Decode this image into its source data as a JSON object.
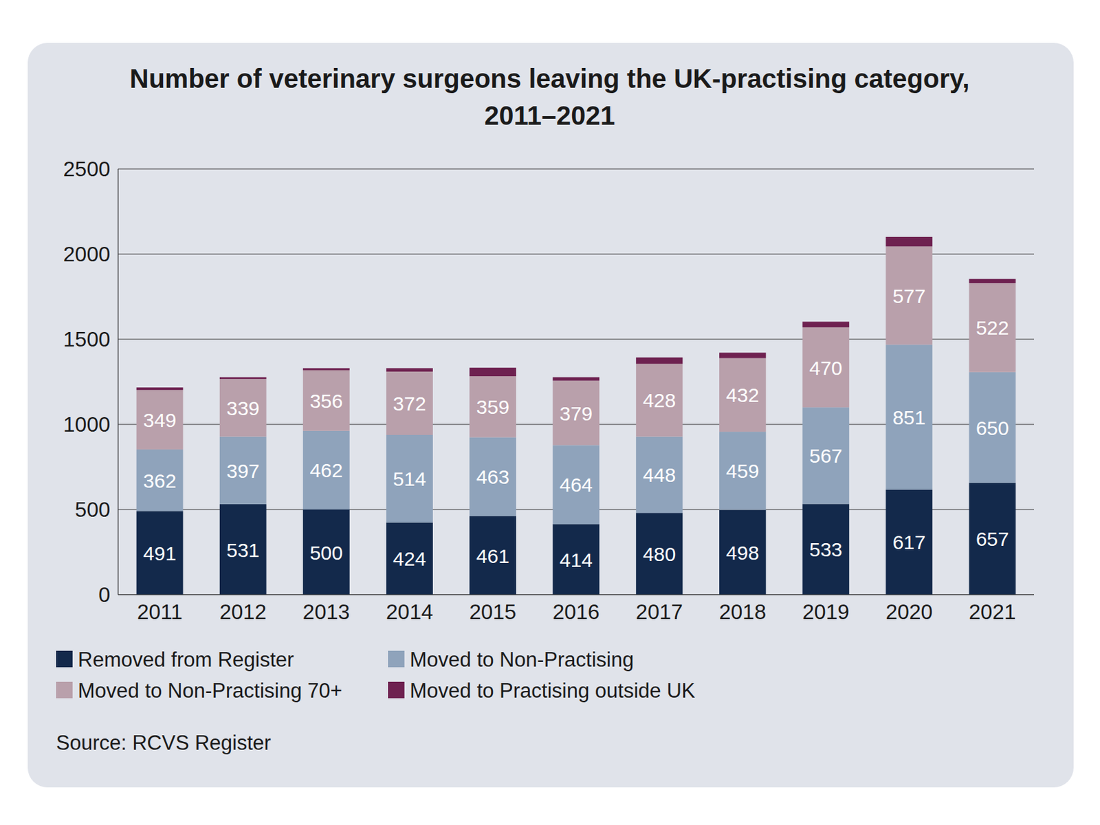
{
  "chart_data": {
    "type": "bar",
    "title": "Number of veterinary surgeons leaving the UK-practising category,\n2011–2021",
    "source": "Source: RCVS Register",
    "categories": [
      "2011",
      "2012",
      "2013",
      "2014",
      "2015",
      "2016",
      "2017",
      "2018",
      "2019",
      "2020",
      "2021"
    ],
    "series": [
      {
        "name": "Removed from Register",
        "color": "#13294b",
        "values": [
          491,
          531,
          500,
          424,
          461,
          414,
          480,
          498,
          533,
          617,
          657
        ]
      },
      {
        "name": "Moved to Non-Practising",
        "color": "#8fa3bb",
        "values": [
          362,
          397,
          462,
          514,
          463,
          464,
          448,
          459,
          567,
          851,
          650
        ]
      },
      {
        "name": "Moved to Non-Practising 70+",
        "color": "#b9a0ab",
        "values": [
          349,
          339,
          356,
          372,
          359,
          379,
          428,
          432,
          470,
          577,
          522
        ]
      },
      {
        "name": "Moved to Practising outside UK",
        "color": "#6e2150",
        "values": [
          15,
          10,
          12,
          20,
          50,
          20,
          37,
          32,
          33,
          56,
          25
        ],
        "data_labels": false
      }
    ],
    "stacked": true,
    "data_labels": true,
    "grid": true,
    "legend": "bottom",
    "ylim": [
      0,
      2500
    ],
    "yticks": [
      0,
      500,
      1000,
      1500,
      2000,
      2500
    ]
  }
}
